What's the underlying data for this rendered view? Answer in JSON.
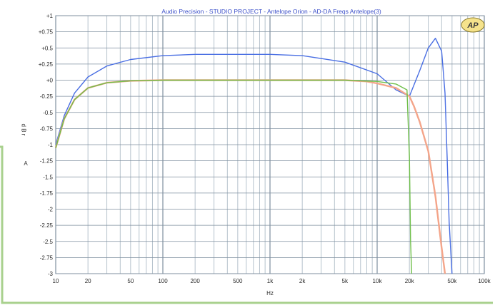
{
  "chart_data": {
    "type": "line",
    "title": "Audio Precision - STUDIO PROJECT - Antelope Orion - AD-DA Freqs Antelope(3)",
    "xlabel": "Hz",
    "ylabel": "d B r",
    "ylabel_unit": "A",
    "x_scale": "log",
    "xlim": [
      10,
      100000
    ],
    "ylim": [
      -3,
      1
    ],
    "x_ticks": [
      10,
      20,
      50,
      100,
      200,
      500,
      1000,
      2000,
      5000,
      10000,
      20000,
      50000,
      100000
    ],
    "x_tick_labels": [
      "10",
      "20",
      "50",
      "100",
      "200",
      "500",
      "1k",
      "2k",
      "5k",
      "10k",
      "20k",
      "50k",
      "100k"
    ],
    "y_ticks": [
      1,
      0.75,
      0.5,
      0.25,
      0,
      -0.25,
      -0.5,
      -0.75,
      -1,
      -1.25,
      -1.5,
      -1.75,
      -2,
      -2.25,
      -2.5,
      -2.75,
      -3
    ],
    "y_tick_labels": [
      "+1",
      "+0.75",
      "+0.5",
      "+0.25",
      "+0",
      "-0.25",
      "-0.5",
      "-0.75",
      "-1",
      "-1.25",
      "-1.5",
      "-1.75",
      "-2",
      "-2.25",
      "-2.5",
      "-2.75",
      "-3"
    ],
    "grid": true,
    "logo_text": "AP",
    "colors": {
      "grid_major": "#7f8f9f",
      "grid_minor": "#b6c2cc",
      "border": "#a9d18e",
      "title": "#3b4fc9"
    },
    "series": [
      {
        "color": "#4a6fe3",
        "x": [
          10,
          12,
          15,
          20,
          30,
          50,
          100,
          200,
          500,
          1000,
          2000,
          5000,
          10000,
          15000,
          20000,
          25000,
          30000,
          35000,
          40000,
          43000,
          45000,
          47000,
          50000
        ],
        "y": [
          -1.0,
          -0.55,
          -0.2,
          0.05,
          0.22,
          0.32,
          0.38,
          0.4,
          0.4,
          0.4,
          0.38,
          0.28,
          0.1,
          -0.15,
          -0.25,
          0.15,
          0.5,
          0.65,
          0.45,
          -0.2,
          -1.2,
          -2.2,
          -3.0
        ]
      },
      {
        "color": "#f4a58a",
        "x": [
          10,
          12,
          15,
          20,
          30,
          50,
          100,
          200,
          500,
          1000,
          2000,
          5000,
          8000,
          10000,
          15000,
          20000,
          22000,
          25000,
          30000,
          35000,
          40000,
          43000
        ],
        "y": [
          -1.05,
          -0.6,
          -0.3,
          -0.12,
          -0.04,
          -0.01,
          0.0,
          0.0,
          0.0,
          0.0,
          0.0,
          0.0,
          -0.02,
          -0.05,
          -0.12,
          -0.25,
          -0.4,
          -0.65,
          -1.1,
          -1.8,
          -2.6,
          -3.0
        ]
      },
      {
        "color": "#6fbf4a",
        "x": [
          10,
          12,
          15,
          20,
          30,
          50,
          100,
          200,
          500,
          1000,
          2000,
          5000,
          10000,
          15000,
          19000,
          20000,
          20500,
          21000
        ],
        "y": [
          -1.05,
          -0.6,
          -0.3,
          -0.12,
          -0.04,
          -0.01,
          0.0,
          0.0,
          0.0,
          0.0,
          0.0,
          0.0,
          -0.02,
          -0.06,
          -0.15,
          -1.2,
          -2.5,
          -3.0
        ]
      }
    ]
  }
}
